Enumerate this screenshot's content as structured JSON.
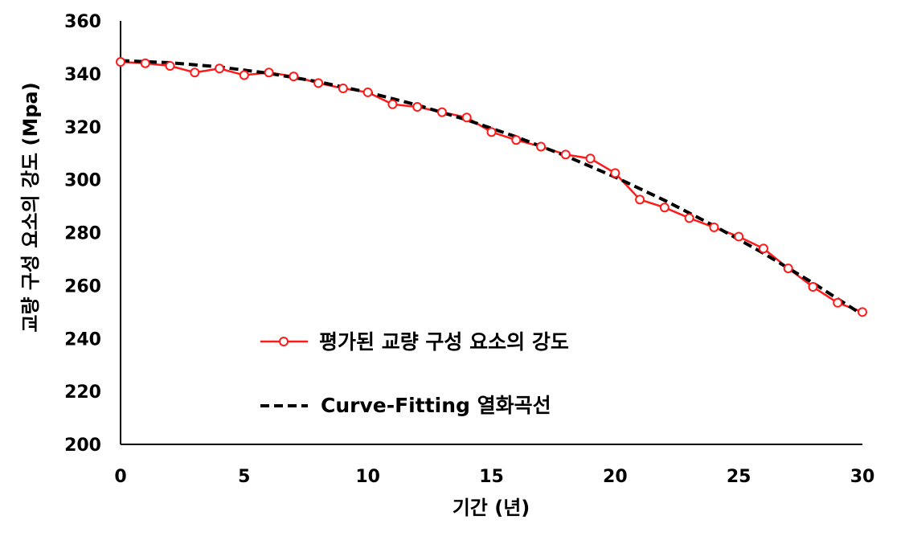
{
  "chart_data": {
    "type": "line",
    "xlabel": "기간 (년)",
    "ylabel": "교량 구성 요소의 강도 (Mpa)",
    "xlim": [
      0,
      30
    ],
    "ylim": [
      200,
      360
    ],
    "xticks": [
      0,
      5,
      10,
      15,
      20,
      25,
      30
    ],
    "yticks": [
      200,
      220,
      240,
      260,
      280,
      300,
      320,
      340,
      360
    ],
    "grid": false,
    "legend_position": "bottom-center",
    "series": [
      {
        "name": "평가된 교량 구성 요소의 강도",
        "style": "solid-with-circle-markers",
        "color": "#ff1a1a",
        "x": [
          0,
          1,
          2,
          3,
          4,
          5,
          6,
          7,
          8,
          9,
          10,
          11,
          12,
          13,
          14,
          15,
          16,
          17,
          18,
          19,
          20,
          21,
          22,
          23,
          24,
          25,
          26,
          27,
          28,
          29,
          30
        ],
        "values": [
          344.5,
          344,
          343,
          340.5,
          342,
          339.5,
          340.5,
          339,
          336.5,
          334.5,
          333,
          328.5,
          327.5,
          325.5,
          323.5,
          318,
          315,
          312.5,
          309.5,
          308,
          302.5,
          292.5,
          289.5,
          285.5,
          282,
          278.5,
          274,
          266.5,
          259.5,
          253.5,
          250
        ]
      },
      {
        "name": "Curve-Fitting 열화곡선",
        "style": "dashed",
        "color": "#000000",
        "x": [
          0,
          2,
          4,
          6,
          8,
          10,
          12,
          14,
          16,
          18,
          20,
          22,
          24,
          26,
          28,
          30
        ],
        "values": [
          345,
          344.2,
          342.6,
          340.2,
          337,
          333,
          328.2,
          322.6,
          316.2,
          309,
          301,
          292.2,
          282.6,
          272.2,
          261,
          249
        ]
      }
    ]
  }
}
